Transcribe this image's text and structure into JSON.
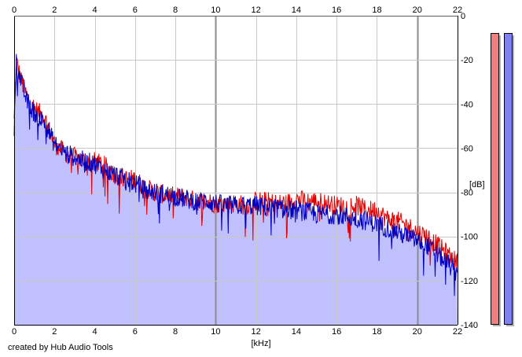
{
  "credit": "created by Hub Audio Tools",
  "colors": {
    "background": "#ffffff",
    "grid": "#c8c8c8",
    "grid_major": "#8c8c8c",
    "fill": "#c0c0ff",
    "channel_red": "#e00000",
    "channel_blue": "#0000c0",
    "meter_red": "#f08080",
    "meter_blue": "#8080f0",
    "meter_shadow": "#b0b0b0"
  },
  "chart_data": {
    "type": "line",
    "title": "",
    "xlabel": "[kHz]",
    "ylabel": "[dB]",
    "xlim": [
      0,
      22
    ],
    "ylim": [
      -140,
      0
    ],
    "x_ticks": [
      0,
      2,
      4,
      6,
      8,
      10,
      12,
      14,
      16,
      18,
      20,
      22
    ],
    "x_tick_labels": [
      "0",
      "2",
      "4",
      "6",
      "8",
      "10",
      "12",
      "14",
      "16",
      "18",
      "20",
      "22"
    ],
    "y_ticks": [
      0,
      -20,
      -40,
      -60,
      -80,
      -100,
      -120,
      -140
    ],
    "y_tick_labels": [
      "0",
      "-20",
      "-40",
      "-60",
      "-80",
      "-100",
      "-120",
      "-140"
    ],
    "x_axis_position": "top and bottom",
    "y_axis_position": "right",
    "grid": true,
    "fill_under": true,
    "series": [
      {
        "color": "#e00000",
        "x": [
          0,
          0.1,
          0.3,
          0.6,
          1,
          1.5,
          2,
          2.5,
          3,
          3.5,
          4,
          4.5,
          5,
          5.5,
          6,
          6.5,
          7,
          7.5,
          8,
          8.5,
          9,
          9.5,
          10,
          10.5,
          11,
          11.5,
          12,
          12.5,
          13,
          13.5,
          14,
          14.5,
          15,
          15.5,
          16,
          16.5,
          17,
          17.5,
          18,
          18.5,
          19,
          19.5,
          20,
          20.5,
          21,
          21.5,
          22
        ],
        "y": [
          -48,
          -20,
          -28,
          -36,
          -42,
          -46,
          -58,
          -62,
          -64,
          -66,
          -66,
          -68,
          -72,
          -74,
          -74,
          -78,
          -80,
          -81,
          -82,
          -82,
          -84,
          -84,
          -85,
          -85,
          -85,
          -86,
          -84,
          -84,
          -85,
          -85,
          -83,
          -84,
          -84,
          -85,
          -86,
          -86,
          -86,
          -88,
          -88,
          -92,
          -93,
          -95,
          -98,
          -100,
          -104,
          -108,
          -112
        ]
      },
      {
        "color": "#0000c0",
        "x": [
          0,
          0.1,
          0.3,
          0.6,
          1,
          1.5,
          2,
          2.5,
          3,
          3.5,
          4,
          4.5,
          5,
          5.5,
          6,
          6.5,
          7,
          7.5,
          8,
          8.5,
          9,
          9.5,
          10,
          10.5,
          11,
          11.5,
          12,
          12.5,
          13,
          13.5,
          14,
          14.5,
          15,
          15.5,
          16,
          16.5,
          17,
          17.5,
          18,
          18.5,
          19,
          19.5,
          20,
          20.5,
          21,
          21.5,
          22
        ],
        "y": [
          -50,
          -20,
          -28,
          -38,
          -44,
          -48,
          -58,
          -62,
          -64,
          -66,
          -67,
          -70,
          -72,
          -74,
          -76,
          -79,
          -80,
          -81,
          -82,
          -83,
          -84,
          -84,
          -85,
          -86,
          -86,
          -86,
          -86,
          -87,
          -87,
          -88,
          -88,
          -89,
          -90,
          -90,
          -90,
          -91,
          -92,
          -93,
          -94,
          -96,
          -98,
          -100,
          -102,
          -104,
          -108,
          -112,
          -117
        ]
      }
    ],
    "meters": [
      {
        "color": "#f08080",
        "value": -140
      },
      {
        "color": "#8080f0",
        "value": -140
      }
    ]
  }
}
